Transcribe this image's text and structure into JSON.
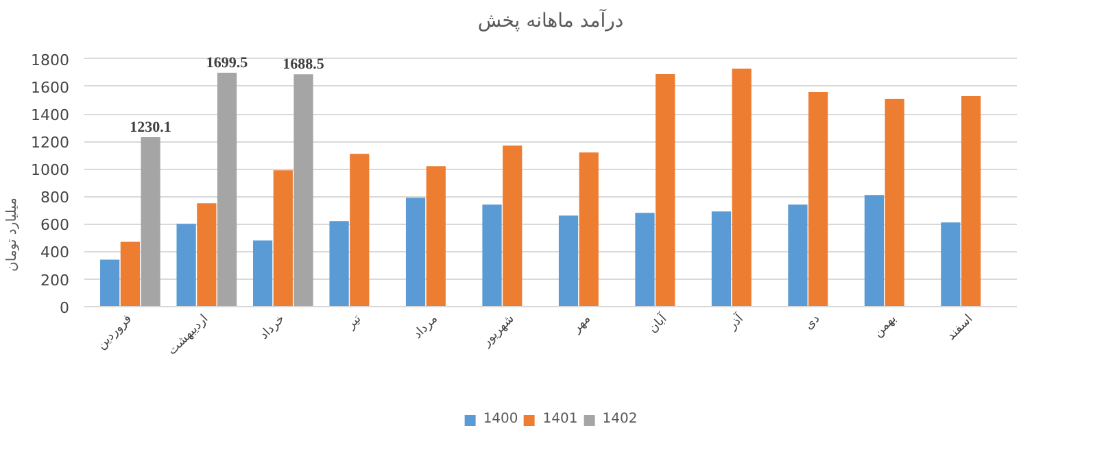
{
  "chart_data": {
    "type": "bar",
    "title": "درآمد ماهانه پخش",
    "ylabel": "میلیارد تومان",
    "categories": [
      "فروردین",
      "اردیبهشت",
      "خرداد",
      "تیر",
      "مرداد",
      "شهریور",
      "مهر",
      "آبان",
      "آذر",
      "دی",
      "بهمن",
      "اسفند"
    ],
    "series": [
      {
        "name": "1400",
        "color": "#5b9bd5",
        "values": [
          340,
          600,
          480,
          620,
          790,
          740,
          660,
          680,
          690,
          740,
          810,
          610
        ]
      },
      {
        "name": "1401",
        "color": "#ed7d31",
        "values": [
          470,
          750,
          990,
          1110,
          1020,
          1170,
          1120,
          1690,
          1730,
          1560,
          1510,
          1530
        ]
      },
      {
        "name": "1402",
        "color": "#a5a5a5",
        "values": [
          1230.1,
          1699.5,
          1688.5,
          null,
          null,
          null,
          null,
          null,
          null,
          null,
          null,
          null
        ],
        "value_labels": [
          "1230.1",
          "1699.5",
          "1688.5",
          null,
          null,
          null,
          null,
          null,
          null,
          null,
          null,
          null
        ]
      }
    ],
    "ylim": [
      0,
      1800
    ],
    "yticks": [
      0,
      200,
      400,
      600,
      800,
      1000,
      1200,
      1400,
      1600,
      1800
    ],
    "grid": "y",
    "legend": "bottom"
  }
}
